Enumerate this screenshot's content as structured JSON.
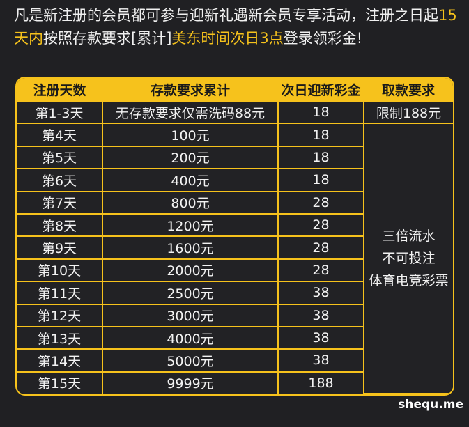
{
  "intro": {
    "part1": "凡是新注册的会员都可参与迎新礼遇新会员专享活动，注册之日起",
    "highlight1": "15天内",
    "part2": "按照存款要求[累计]",
    "highlight2": "美东时间次日3点",
    "part3": "登录领彩金!"
  },
  "table": {
    "headers": [
      "注册天数",
      "存款要求累计",
      "次日迎新彩金",
      "取款要求"
    ],
    "rows": [
      {
        "day": "第1-3天",
        "deposit": "无存款要求仅需洗码88元",
        "bonus": "18"
      },
      {
        "day": "第4天",
        "deposit": "100元",
        "bonus": "18"
      },
      {
        "day": "第5天",
        "deposit": "200元",
        "bonus": "18"
      },
      {
        "day": "第6天",
        "deposit": "400元",
        "bonus": "18"
      },
      {
        "day": "第7天",
        "deposit": "800元",
        "bonus": "28"
      },
      {
        "day": "第8天",
        "deposit": "1200元",
        "bonus": "28"
      },
      {
        "day": "第9天",
        "deposit": "1600元",
        "bonus": "28"
      },
      {
        "day": "第10天",
        "deposit": "2000元",
        "bonus": "28"
      },
      {
        "day": "第11天",
        "deposit": "2500元",
        "bonus": "38"
      },
      {
        "day": "第12天",
        "deposit": "3000元",
        "bonus": "38"
      },
      {
        "day": "第13天",
        "deposit": "4000元",
        "bonus": "38"
      },
      {
        "day": "第14天",
        "deposit": "5000元",
        "bonus": "38"
      },
      {
        "day": "第15天",
        "deposit": "9999元",
        "bonus": "188"
      }
    ],
    "withdraw_first": "限制188元",
    "withdraw_rest": [
      "三倍流水",
      "不可投注",
      "体育电竞彩票"
    ]
  },
  "watermark": "shequ.me",
  "colors": {
    "accent": "#f6c21c",
    "background": "#202023"
  }
}
